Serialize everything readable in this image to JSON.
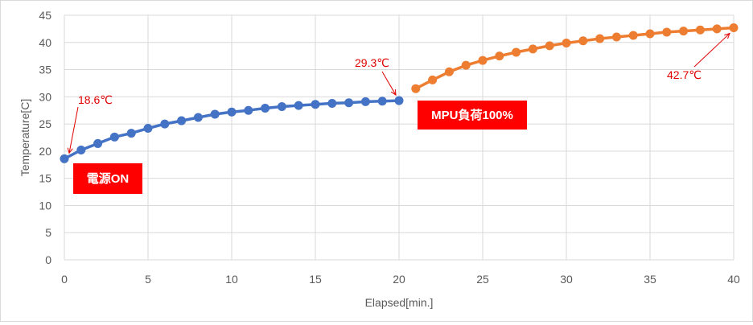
{
  "chart_data": {
    "type": "line",
    "xlabel": "Elapsed[min.]",
    "ylabel": "Temperature[C]",
    "xlim": [
      0,
      40
    ],
    "ylim": [
      0,
      45
    ],
    "x_ticks": [
      0,
      5,
      10,
      15,
      20,
      25,
      30,
      35,
      40
    ],
    "y_ticks": [
      0,
      5,
      10,
      15,
      20,
      25,
      30,
      35,
      40,
      45
    ],
    "grid": true,
    "legend": "none",
    "series": [
      {
        "color": "#4472c4",
        "x": [
          0,
          1,
          2,
          3,
          4,
          5,
          6,
          7,
          8,
          9,
          10,
          11,
          12,
          13,
          14,
          15,
          16,
          17,
          18,
          19,
          20
        ],
        "y": [
          18.6,
          20.2,
          21.4,
          22.6,
          23.3,
          24.2,
          25.0,
          25.6,
          26.2,
          26.8,
          27.2,
          27.5,
          27.9,
          28.2,
          28.4,
          28.6,
          28.8,
          28.9,
          29.1,
          29.2,
          29.3
        ]
      },
      {
        "color": "#ed7d31",
        "x": [
          21,
          22,
          23,
          24,
          25,
          26,
          27,
          28,
          29,
          30,
          31,
          32,
          33,
          34,
          35,
          36,
          37,
          38,
          39,
          40
        ],
        "y": [
          31.5,
          33.1,
          34.6,
          35.8,
          36.7,
          37.5,
          38.2,
          38.8,
          39.4,
          39.9,
          40.3,
          40.7,
          41.0,
          41.3,
          41.6,
          41.9,
          42.1,
          42.3,
          42.5,
          42.7
        ]
      }
    ],
    "annotations": [
      {
        "text": "18.6℃",
        "x": 0,
        "y": 18.6
      },
      {
        "text": "29.3℃",
        "x": 20,
        "y": 29.3
      },
      {
        "text": "42.7℃",
        "x": 40,
        "y": 42.7
      }
    ],
    "labels": [
      {
        "text": "電源ON",
        "background": "#ff0000"
      },
      {
        "text": "MPU負荷100%",
        "background": "#ff0000"
      }
    ],
    "gridline_color": "#d9d9d9",
    "annotation_color": "#e00000"
  }
}
